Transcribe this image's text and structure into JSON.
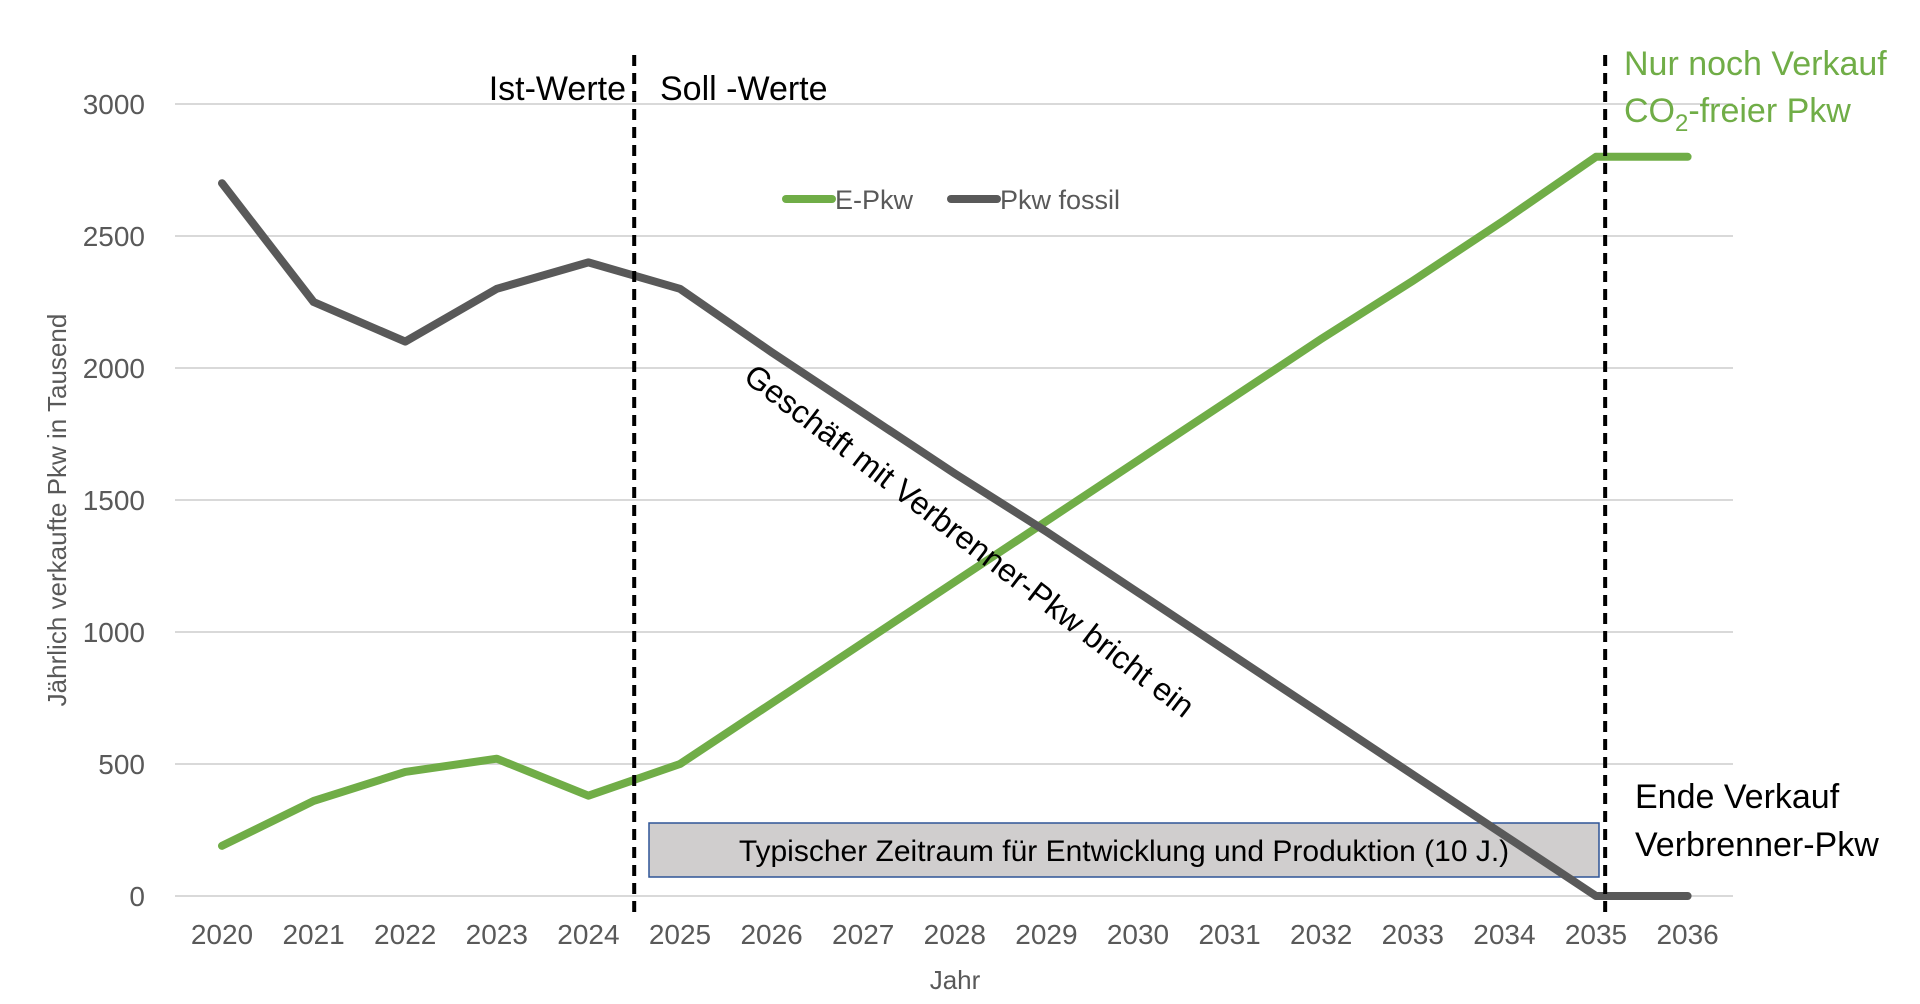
{
  "chart_data": {
    "type": "line",
    "x": [
      2020,
      2021,
      2022,
      2023,
      2024,
      2025,
      2026,
      2027,
      2028,
      2029,
      2030,
      2031,
      2032,
      2033,
      2034,
      2035,
      2036
    ],
    "x_tick_labels": [
      "2020",
      "2021",
      "2022",
      "2023",
      "2024",
      "2025",
      "2026",
      "2027",
      "2028",
      "2029",
      "2030",
      "2031",
      "2032",
      "2033",
      "2034",
      "2035",
      "2036"
    ],
    "series": [
      {
        "name": "E-Pkw",
        "color": "#70AD47",
        "values": [
          190,
          360,
          470,
          520,
          380,
          500,
          730,
          960,
          1190,
          1420,
          1650,
          1880,
          2110,
          2330,
          2560,
          2800,
          2800
        ]
      },
      {
        "name": "Pkw fossil",
        "color": "#595959",
        "values": [
          2700,
          2250,
          2100,
          2300,
          2400,
          2300,
          2060,
          1830,
          1600,
          1380,
          1150,
          920,
          690,
          460,
          230,
          0,
          0
        ]
      }
    ],
    "y_ticks": [
      0,
      500,
      1000,
      1500,
      2000,
      2500,
      3000
    ],
    "ylim": [
      0,
      3000
    ],
    "xlabel": "Jahr",
    "ylabel": "Jährlich verkaufte Pkw in Tausend",
    "grid": true,
    "legend_position": "top-center",
    "annotations": {
      "ist_werte": "Ist-Werte",
      "soll_werte": "Soll -Werte",
      "nur_noch_line1": "Nur noch Verkauf",
      "nur_noch_line2_pre": "CO",
      "nur_noch_line2_sub": "2",
      "nur_noch_line2_post": "-freier Pkw",
      "diagonal": "Geschäft mit Verbrenner-Pkw bricht ein",
      "box_label": "Typischer Zeitraum für Entwicklung und Produktion (10 J.)",
      "ende_line1": "Ende Verkauf",
      "ende_line2": "Verbrenner-Pkw"
    },
    "vertical_markers": [
      2024.5,
      2035.1
    ]
  }
}
